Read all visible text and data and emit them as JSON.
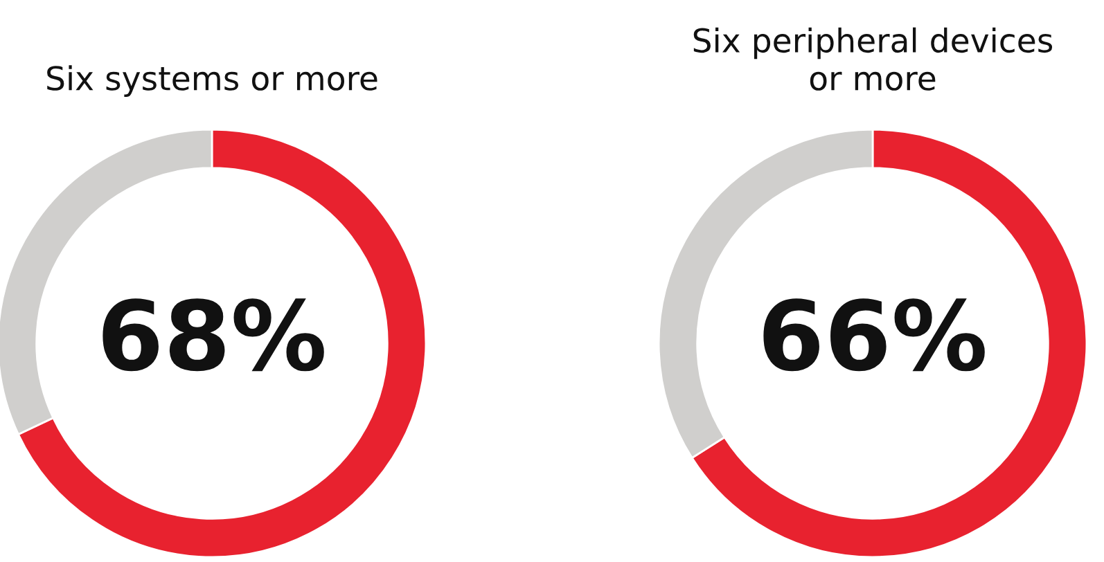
{
  "chart_data": [
    {
      "type": "donut",
      "title": "Six systems or more",
      "categories": [
        null,
        null
      ],
      "values": [
        68,
        32
      ],
      "colors": [
        "#e8222f",
        "#d0cfcd"
      ],
      "value_labels": [
        "68%",
        null
      ]
    },
    {
      "type": "donut",
      "title": "Six peripheral devices\nor more",
      "categories": [
        null,
        null
      ],
      "values": [
        66,
        34
      ],
      "colors": [
        "#e8222f",
        "#d0cfcd"
      ],
      "value_labels": [
        "66%",
        null
      ]
    }
  ]
}
